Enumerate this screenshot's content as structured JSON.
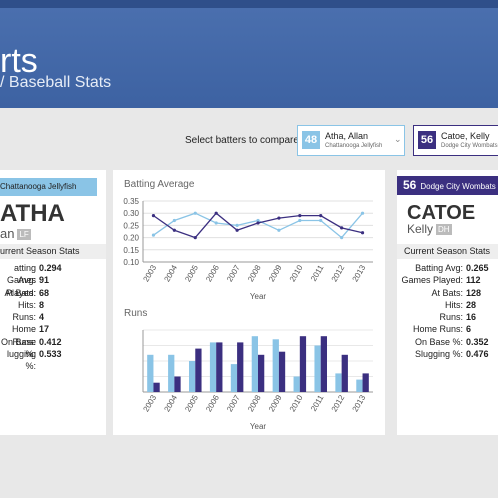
{
  "header": {
    "title": "rts",
    "breadcrumb": "/ Baseball Stats"
  },
  "selector": {
    "label": "Select batters to compare:",
    "options": [
      {
        "number": "48",
        "name": "Atha, Allan",
        "team": "Chattanooga Jellyfish"
      },
      {
        "number": "56",
        "name": "Catoe, Kelly",
        "team": "Dodge City Wombats"
      }
    ]
  },
  "left_card": {
    "team": "Chattanooga Jellyfish",
    "last_name": "ATHA",
    "first_name": "an",
    "position": "LF",
    "section": "urrent Season Stats",
    "stats": [
      {
        "label": "atting Avg:",
        "value": "0.294"
      },
      {
        "label": "Games Played:",
        "value": "91"
      },
      {
        "label": "At Bats:",
        "value": "68"
      },
      {
        "label": "Hits:",
        "value": "8"
      },
      {
        "label": "Runs:",
        "value": "4"
      },
      {
        "label": "Home Runs:",
        "value": "17"
      },
      {
        "label": "On Base %:",
        "value": "0.412"
      },
      {
        "label": "lugging %:",
        "value": "0.533"
      }
    ]
  },
  "right_card": {
    "number": "56",
    "team": "Dodge City Wombats",
    "last_name": "CATOE",
    "first_name": "Kelly",
    "position": "DH",
    "section": "Current Season Stats",
    "stats": [
      {
        "label": "Batting Avg:",
        "value": "0.265"
      },
      {
        "label": "Games Played:",
        "value": "112"
      },
      {
        "label": "At Bats:",
        "value": "128"
      },
      {
        "label": "Hits:",
        "value": "28"
      },
      {
        "label": "Runs:",
        "value": "16"
      },
      {
        "label": "Home Runs:",
        "value": "6"
      },
      {
        "label": "On Base %:",
        "value": "0.352"
      },
      {
        "label": "Slugging %:",
        "value": "0.476"
      }
    ]
  },
  "chart_data": [
    {
      "type": "line",
      "title": "Batting Average",
      "x_label": "Year",
      "categories": [
        "2003",
        "2004",
        "2005",
        "2006",
        "2007",
        "2008",
        "2009",
        "2010",
        "2011",
        "2012",
        "2013"
      ],
      "series": [
        {
          "color": "#8ac4e6",
          "values": [
            0.21,
            0.27,
            0.3,
            0.26,
            0.25,
            0.27,
            0.23,
            0.27,
            0.27,
            0.2,
            0.3
          ]
        },
        {
          "color": "#3b2f80",
          "values": [
            0.29,
            0.23,
            0.2,
            0.3,
            0.23,
            0.26,
            0.28,
            0.29,
            0.29,
            0.24,
            0.22
          ]
        }
      ],
      "ylim": [
        0.1,
        0.35
      ],
      "yticks": [
        {
          "value": 0.1,
          "label": "0.10"
        },
        0.15,
        {
          "value": 0.2,
          "label": "0.20"
        },
        0.25,
        {
          "value": 0.3,
          "label": "0.30"
        },
        0.35
      ],
      "grid": true
    },
    {
      "type": "bar",
      "title": "Runs",
      "x_label": "Year",
      "categories": [
        "2003",
        "2004",
        "2005",
        "2006",
        "2007",
        "2008",
        "2009",
        "2010",
        "2011",
        "2012",
        "2013"
      ],
      "series": [
        {
          "color": "#8ac4e6",
          "values": [
            12,
            12,
            10,
            16,
            9,
            18,
            17,
            5,
            15,
            6,
            4
          ]
        },
        {
          "color": "#3b2f80",
          "values": [
            3,
            5,
            14,
            16,
            16,
            12,
            13,
            18,
            18,
            12,
            6
          ]
        }
      ],
      "ylim": [
        0,
        20
      ]
    }
  ]
}
